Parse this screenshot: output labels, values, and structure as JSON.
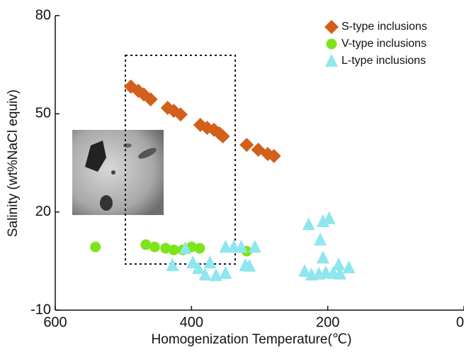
{
  "chart_data": {
    "type": "scatter",
    "x_label": "Homogenization Temperature(℃)",
    "y_label": "Salinity (wt%NaCl equiv)",
    "xlim": [
      600,
      0
    ],
    "ylim": [
      -10,
      80
    ],
    "xticks": [
      600,
      400,
      200,
      0
    ],
    "yticks": [
      -10,
      20,
      50,
      80
    ],
    "legend": "top-right",
    "series": [
      {
        "name": "S-type inclusions",
        "color": "#d2601a",
        "marker": "diamond",
        "x": [
          489,
          478,
          470,
          460,
          435,
          426,
          416,
          387,
          377,
          367,
          359,
          354,
          319,
          302,
          288,
          279
        ],
        "y": [
          58.3,
          57.0,
          55.9,
          54.4,
          51.8,
          50.9,
          49.8,
          46.6,
          45.7,
          45.1,
          44.0,
          43.1,
          40.5,
          39.0,
          37.7,
          37.1
        ]
      },
      {
        "name": "V-type inclusions",
        "color": "#7ee41a",
        "marker": "circle",
        "x": [
          541,
          467,
          454,
          438,
          426,
          413,
          400,
          388,
          319
        ],
        "y": [
          9.3,
          10.0,
          9.3,
          8.9,
          8.4,
          8.4,
          9.3,
          8.9,
          8.0
        ]
      },
      {
        "name": "L-type inclusions",
        "color": "#8ee6ee",
        "marker": "triangle",
        "x": [
          428,
          409,
          398,
          390,
          380,
          373,
          364,
          350,
          350,
          338,
          327,
          321,
          315,
          307,
          228,
          207,
          198,
          211,
          234,
          224,
          213,
          203,
          192,
          182,
          169,
          207,
          184
        ],
        "y": [
          3.7,
          8.9,
          4.5,
          2.8,
          0.8,
          4.5,
          0.6,
          1.3,
          9.3,
          9.3,
          9.3,
          3.7,
          3.5,
          9.3,
          16.2,
          17.1,
          18.0,
          11.5,
          1.9,
          0.8,
          1.1,
          1.5,
          1.3,
          1.1,
          3.0,
          6.0,
          3.9
        ]
      }
    ]
  }
}
